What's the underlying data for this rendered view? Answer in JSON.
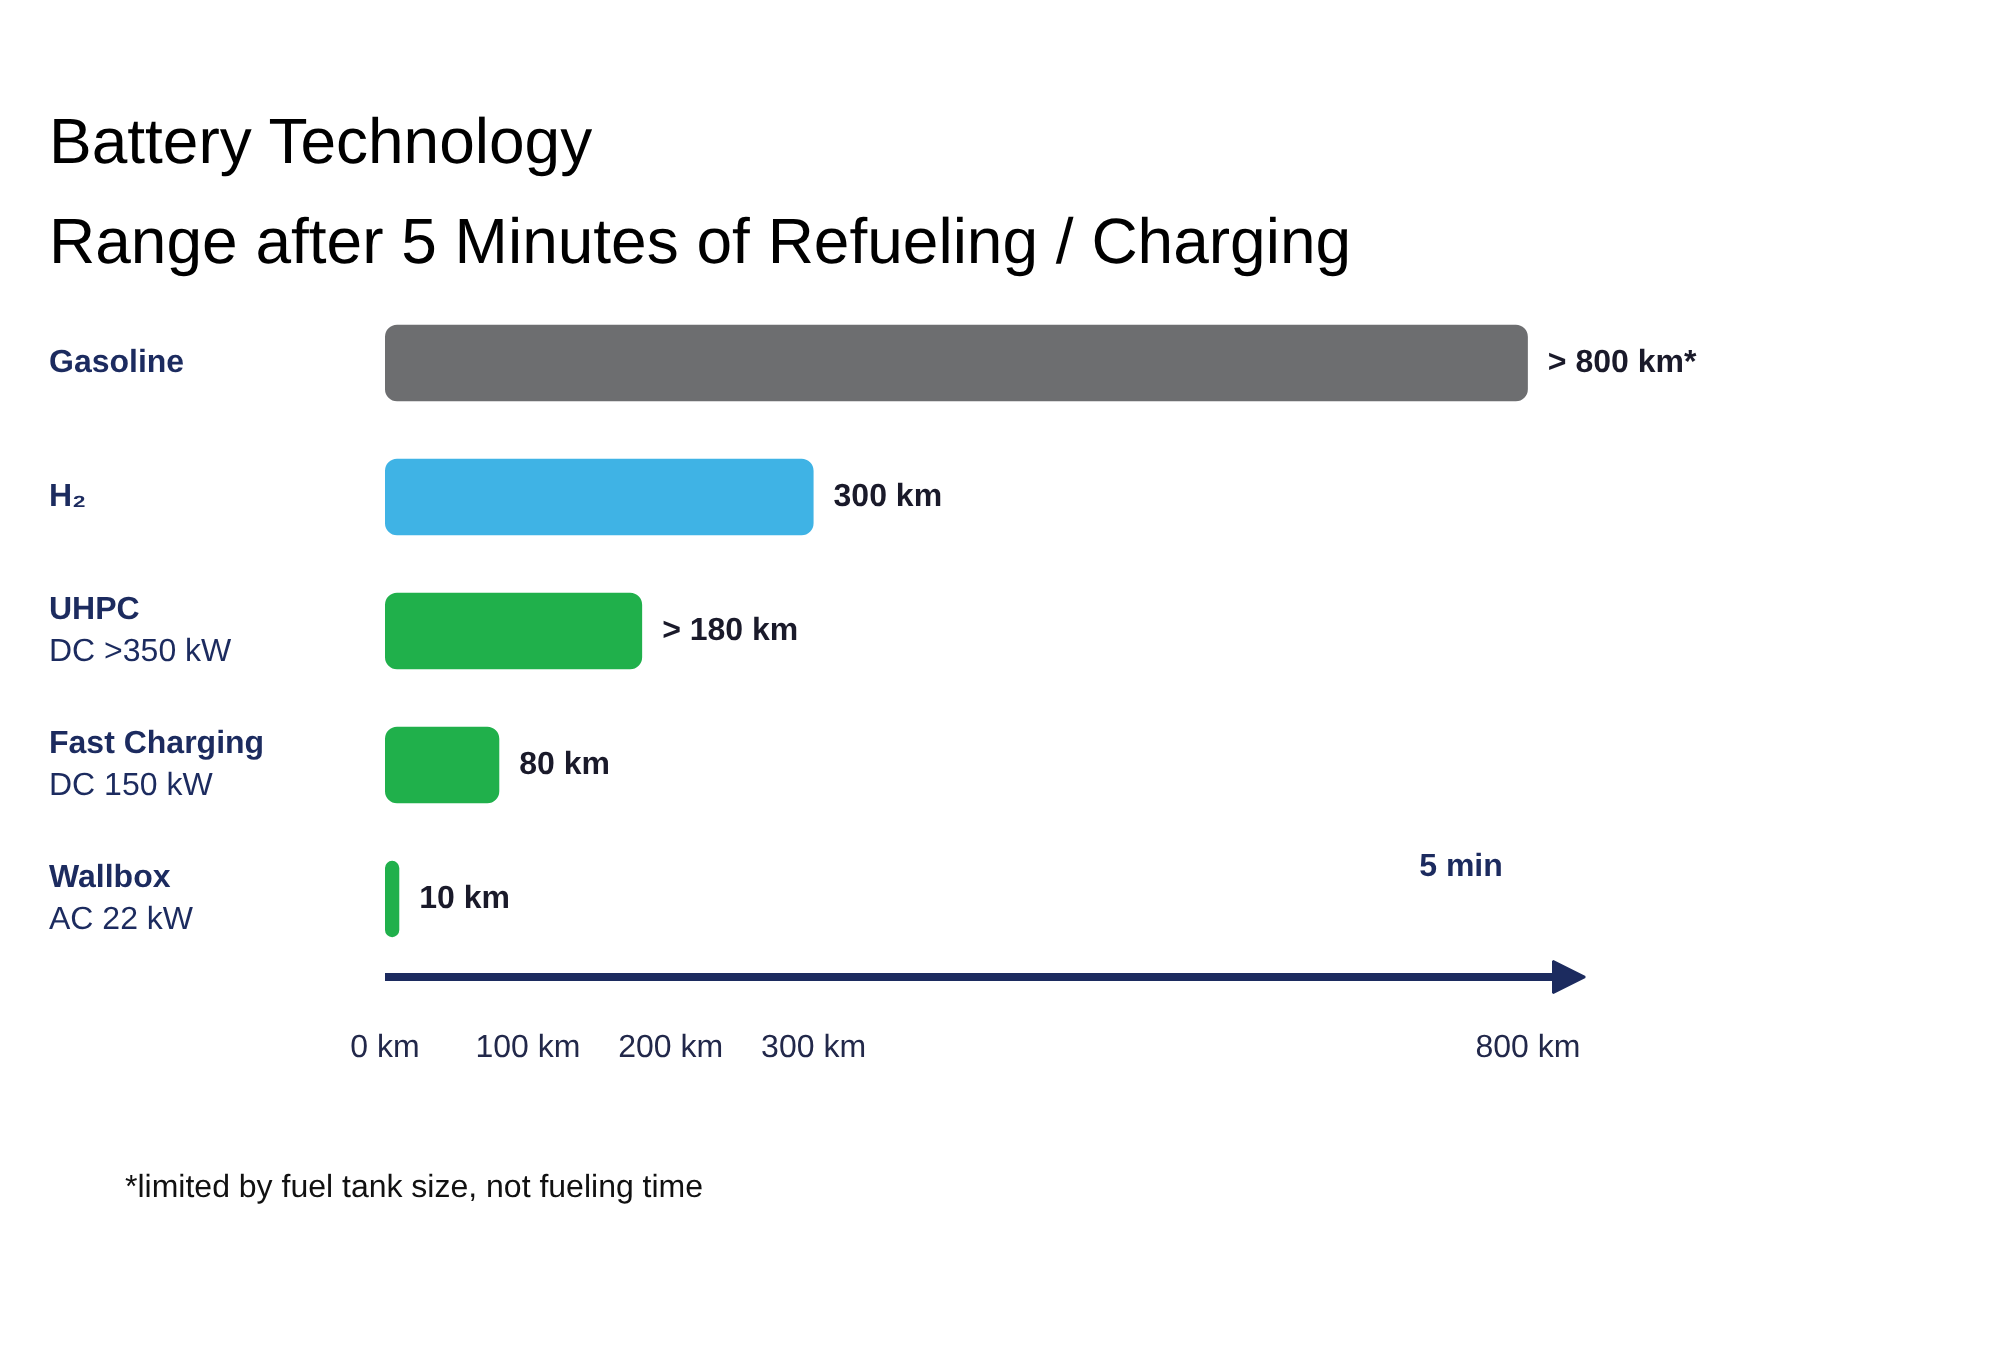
{
  "chart_data": {
    "type": "bar",
    "orientation": "horizontal",
    "title": "Battery Technology",
    "subtitle": "Range after 5 Minutes of Refueling / Charging",
    "categories": [
      "Gasoline",
      "H₂",
      "UHPC\nDC >350 kW",
      "Fast Charging\nDC 150 kW",
      "Wallbox\nAC 22 kW"
    ],
    "values": [
      800,
      300,
      180,
      80,
      10
    ],
    "colors": [
      "#6d6e70",
      "#3fb3e5",
      "#20b04b",
      "#20b04b",
      "#20b04b"
    ],
    "value_labels": [
      "> 800 km*",
      "300 km",
      "> 180 km",
      "80 km",
      "10 km"
    ],
    "xlim": [
      0,
      840
    ],
    "xticks": [
      {
        "value": 0,
        "label": "0 km"
      },
      {
        "value": 100,
        "label": "100 km"
      },
      {
        "value": 200,
        "label": "200 km"
      },
      {
        "value": 300,
        "label": "300 km"
      },
      {
        "value": 800,
        "label": "800 km"
      }
    ],
    "grid": false,
    "annotations": [
      "5 min",
      "*limited by fuel tank size, not fueling time"
    ]
  }
}
